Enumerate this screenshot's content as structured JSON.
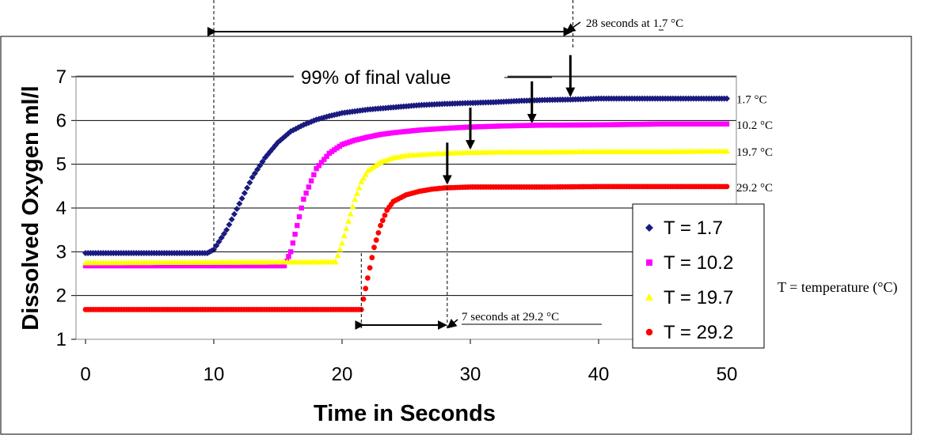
{
  "chart_data": {
    "type": "scatter",
    "title": "",
    "xlabel": "Time in Seconds",
    "ylabel": "Dissolved Oxygen ml/l",
    "xlim": [
      0,
      50
    ],
    "ylim": [
      1,
      7
    ],
    "xticks": [
      0,
      10,
      20,
      30,
      40,
      50
    ],
    "yticks": [
      1,
      2,
      3,
      4,
      5,
      6,
      7
    ],
    "grid": "horizontal",
    "legend_position": "right",
    "series": [
      {
        "name": "T = 1.7",
        "color": "#1a1a80",
        "marker": "diamond",
        "end_label": "1.7 °C",
        "x": [
          0,
          9.5,
          10,
          11,
          12,
          13,
          14,
          15,
          16,
          17,
          18,
          19,
          20,
          22,
          24,
          26,
          28,
          30,
          32,
          34,
          36,
          38,
          40,
          45,
          50
        ],
        "y": [
          2.97,
          2.97,
          3.05,
          3.5,
          4.1,
          4.7,
          5.15,
          5.5,
          5.75,
          5.9,
          6.02,
          6.1,
          6.17,
          6.25,
          6.3,
          6.35,
          6.38,
          6.4,
          6.42,
          6.45,
          6.47,
          6.48,
          6.5,
          6.5,
          6.5
        ]
      },
      {
        "name": "T = 10.2",
        "color": "#ff00ff",
        "marker": "square",
        "end_label": "10.2 °C",
        "x": [
          0,
          15.5,
          16,
          16.5,
          17,
          18,
          19,
          20,
          21,
          22,
          23,
          24,
          26,
          28,
          30,
          32,
          35,
          40,
          45,
          50
        ],
        "y": [
          2.68,
          2.68,
          3.0,
          3.6,
          4.2,
          4.9,
          5.25,
          5.45,
          5.55,
          5.62,
          5.68,
          5.72,
          5.78,
          5.82,
          5.85,
          5.87,
          5.89,
          5.9,
          5.92,
          5.92
        ]
      },
      {
        "name": "T = 19.7",
        "color": "#ffff00",
        "marker": "triangle",
        "end_label": "19.7 °C",
        "x": [
          0,
          19.5,
          20,
          20.5,
          21,
          21.5,
          22,
          23,
          24,
          25,
          26,
          28,
          30,
          33,
          36,
          40,
          45,
          50
        ],
        "y": [
          2.75,
          2.77,
          3.2,
          3.7,
          4.2,
          4.6,
          4.85,
          5.05,
          5.15,
          5.2,
          5.22,
          5.25,
          5.27,
          5.28,
          5.28,
          5.29,
          5.29,
          5.3
        ]
      },
      {
        "name": "T = 29.2",
        "color": "#ff0000",
        "marker": "circle",
        "end_label": "29.2 °C",
        "x": [
          0,
          21.5,
          22,
          22.5,
          23,
          23.5,
          24,
          25,
          26,
          27,
          28,
          30,
          33,
          36,
          40,
          45,
          50
        ],
        "y": [
          1.68,
          1.68,
          2.4,
          3.1,
          3.6,
          3.95,
          4.15,
          4.3,
          4.38,
          4.43,
          4.46,
          4.48,
          4.48,
          4.48,
          4.49,
          4.49,
          4.49
        ]
      }
    ],
    "annotations": {
      "top_response": "28 seconds at 1.7 °C",
      "bottom_response": "7 seconds at 29.2 °C",
      "percent_label": "99% of final value",
      "temp_note": "T = temperature (°C)",
      "top_response_span": [
        10,
        38
      ],
      "bottom_response_span": [
        21.5,
        28.2
      ],
      "arrow_points": [
        [
          37.8,
          6.5
        ],
        [
          34.8,
          5.9
        ],
        [
          30.0,
          5.3
        ],
        [
          28.2,
          4.5
        ]
      ]
    }
  }
}
